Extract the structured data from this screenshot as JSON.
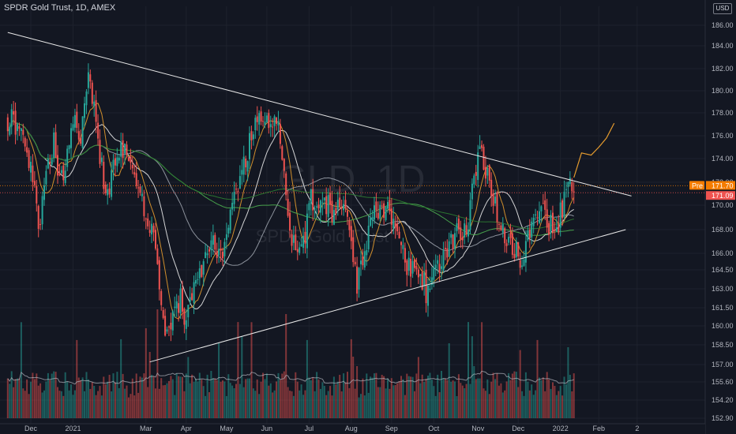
{
  "title": "SPDR Gold Trust, 1D, AMEX",
  "currency": "USD",
  "watermark": {
    "symbol": "GLD",
    "interval": "1D",
    "name": "SPDR Gold Trust"
  },
  "colors": {
    "background": "#131722",
    "up": "#26a69a",
    "down": "#ef5350",
    "ma_white": "#e8e8e8",
    "ma_gray": "#9aa0aa",
    "ma_orange": "#e59b2e",
    "ma_green": "#4caf50",
    "ma_darkgreen": "#2e7d32",
    "trendline": "#e8e8e8",
    "pre_tag": "#f57c00",
    "last_tag": "#ef5350"
  },
  "chart_data": {
    "type": "candlestick",
    "y_axis": {
      "min": 152.9,
      "max": 188.0,
      "ticks": [
        186.0,
        184.0,
        182.0,
        180.0,
        178.0,
        176.0,
        174.0,
        172.0,
        170.0,
        168.0,
        166.0,
        164.5,
        163.0,
        161.5,
        160.0,
        158.5,
        157.0,
        155.6,
        154.2,
        152.9
      ],
      "tick_labels": [
        "186.00",
        "184.00",
        "182.00",
        "180.00",
        "178.00",
        "176.00",
        "174.00",
        "172.00",
        "170.00",
        "168.00",
        "166.00",
        "164.50",
        "163.00",
        "161.50",
        "160.00",
        "158.50",
        "157.00",
        "155.60",
        "154.20",
        "152.90"
      ]
    },
    "x_axis": {
      "labels": [
        "Dec",
        "2021",
        "Mar",
        "Apr",
        "May",
        "Jun",
        "Jul",
        "Aug",
        "Sep",
        "Oct",
        "Nov",
        "Dec",
        "2022",
        "Feb",
        "2"
      ],
      "label_days": [
        0,
        22,
        60,
        81,
        102,
        123,
        145,
        167,
        188,
        210,
        233,
        254,
        276,
        296,
        316
      ]
    },
    "price_tags": [
      {
        "label": "Pre",
        "value": 171.7,
        "text": "171.70"
      },
      {
        "label": "",
        "value": 171.09,
        "text": "171.09"
      }
    ],
    "trendlines": [
      {
        "name": "upper",
        "points": [
          [
            -12,
            185.3
          ],
          [
            313,
            170.8
          ]
        ]
      },
      {
        "name": "lower",
        "points": [
          [
            62,
            157.2
          ],
          [
            310,
            168.0
          ]
        ]
      }
    ],
    "anchors": [
      {
        "day": -12,
        "close": 177.5
      },
      {
        "day": -4,
        "close": 176.8
      },
      {
        "day": 2,
        "close": 171.0
      },
      {
        "day": 5,
        "close": 168.0
      },
      {
        "day": 8,
        "close": 173.5
      },
      {
        "day": 12,
        "close": 175.3
      },
      {
        "day": 16,
        "close": 172.0
      },
      {
        "day": 20,
        "close": 175.0
      },
      {
        "day": 22,
        "close": 178.0
      },
      {
        "day": 26,
        "close": 176.0
      },
      {
        "day": 30,
        "close": 181.0
      },
      {
        "day": 33,
        "close": 178.5
      },
      {
        "day": 36,
        "close": 173.5
      },
      {
        "day": 40,
        "close": 171.5
      },
      {
        "day": 44,
        "close": 173.5
      },
      {
        "day": 48,
        "close": 175.0
      },
      {
        "day": 52,
        "close": 173.0
      },
      {
        "day": 56,
        "close": 171.0
      },
      {
        "day": 60,
        "close": 169.0
      },
      {
        "day": 63,
        "close": 168.5
      },
      {
        "day": 66,
        "close": 164.0
      },
      {
        "day": 68,
        "close": 161.5
      },
      {
        "day": 71,
        "close": 159.5
      },
      {
        "day": 74,
        "close": 161.0
      },
      {
        "day": 78,
        "close": 162.5
      },
      {
        "day": 81,
        "close": 160.5
      },
      {
        "day": 85,
        "close": 162.5
      },
      {
        "day": 90,
        "close": 164.5
      },
      {
        "day": 95,
        "close": 167.0
      },
      {
        "day": 100,
        "close": 166.0
      },
      {
        "day": 103,
        "close": 168.5
      },
      {
        "day": 107,
        "close": 171.5
      },
      {
        "day": 112,
        "close": 173.5
      },
      {
        "day": 116,
        "close": 177.0
      },
      {
        "day": 120,
        "close": 178.0
      },
      {
        "day": 124,
        "close": 177.5
      },
      {
        "day": 128,
        "close": 177.0
      },
      {
        "day": 131,
        "close": 175.0
      },
      {
        "day": 133,
        "close": 170.0
      },
      {
        "day": 135,
        "close": 167.0
      },
      {
        "day": 139,
        "close": 166.5
      },
      {
        "day": 142,
        "close": 166.8
      },
      {
        "day": 146,
        "close": 170.5
      },
      {
        "day": 150,
        "close": 169.5
      },
      {
        "day": 154,
        "close": 170.0
      },
      {
        "day": 158,
        "close": 169.5
      },
      {
        "day": 162,
        "close": 170.0
      },
      {
        "day": 166,
        "close": 168.5
      },
      {
        "day": 168,
        "close": 165.5
      },
      {
        "day": 170,
        "close": 163.0
      },
      {
        "day": 173,
        "close": 166.0
      },
      {
        "day": 177,
        "close": 168.5
      },
      {
        "day": 181,
        "close": 169.5
      },
      {
        "day": 185,
        "close": 170.0
      },
      {
        "day": 188,
        "close": 169.0
      },
      {
        "day": 192,
        "close": 168.0
      },
      {
        "day": 196,
        "close": 165.0
      },
      {
        "day": 200,
        "close": 164.5
      },
      {
        "day": 204,
        "close": 163.8
      },
      {
        "day": 207,
        "close": 162.5
      },
      {
        "day": 210,
        "close": 164.5
      },
      {
        "day": 214,
        "close": 165.5
      },
      {
        "day": 218,
        "close": 166.5
      },
      {
        "day": 222,
        "close": 167.5
      },
      {
        "day": 226,
        "close": 167.5
      },
      {
        "day": 229,
        "close": 169.5
      },
      {
        "day": 231,
        "close": 172.5
      },
      {
        "day": 234,
        "close": 174.2
      },
      {
        "day": 238,
        "close": 173.0
      },
      {
        "day": 241,
        "close": 170.5
      },
      {
        "day": 244,
        "close": 168.5
      },
      {
        "day": 248,
        "close": 167.0
      },
      {
        "day": 252,
        "close": 166.5
      },
      {
        "day": 255,
        "close": 165.5
      },
      {
        "day": 258,
        "close": 166.5
      },
      {
        "day": 262,
        "close": 168.5
      },
      {
        "day": 266,
        "close": 169.5
      },
      {
        "day": 270,
        "close": 168.5
      },
      {
        "day": 274,
        "close": 168.0
      },
      {
        "day": 277,
        "close": 170.0
      },
      {
        "day": 280,
        "close": 171.8
      },
      {
        "day": 283,
        "close": 171.09
      }
    ],
    "projection": {
      "name": "path",
      "points": [
        [
          283,
          172.4
        ],
        [
          287,
          174.5
        ],
        [
          292,
          174.3
        ],
        [
          296,
          175.0
        ],
        [
          300,
          175.8
        ],
        [
          304,
          177.1
        ]
      ]
    },
    "moving_averages": [
      {
        "name": "ma-white-20",
        "period": 20
      },
      {
        "name": "ma-gray-50",
        "period": 50
      },
      {
        "name": "ma-orange-9",
        "period": 9
      },
      {
        "name": "ma-green-100",
        "period": 100
      },
      {
        "name": "ma-darkgreen-200",
        "period": 200
      }
    ]
  }
}
